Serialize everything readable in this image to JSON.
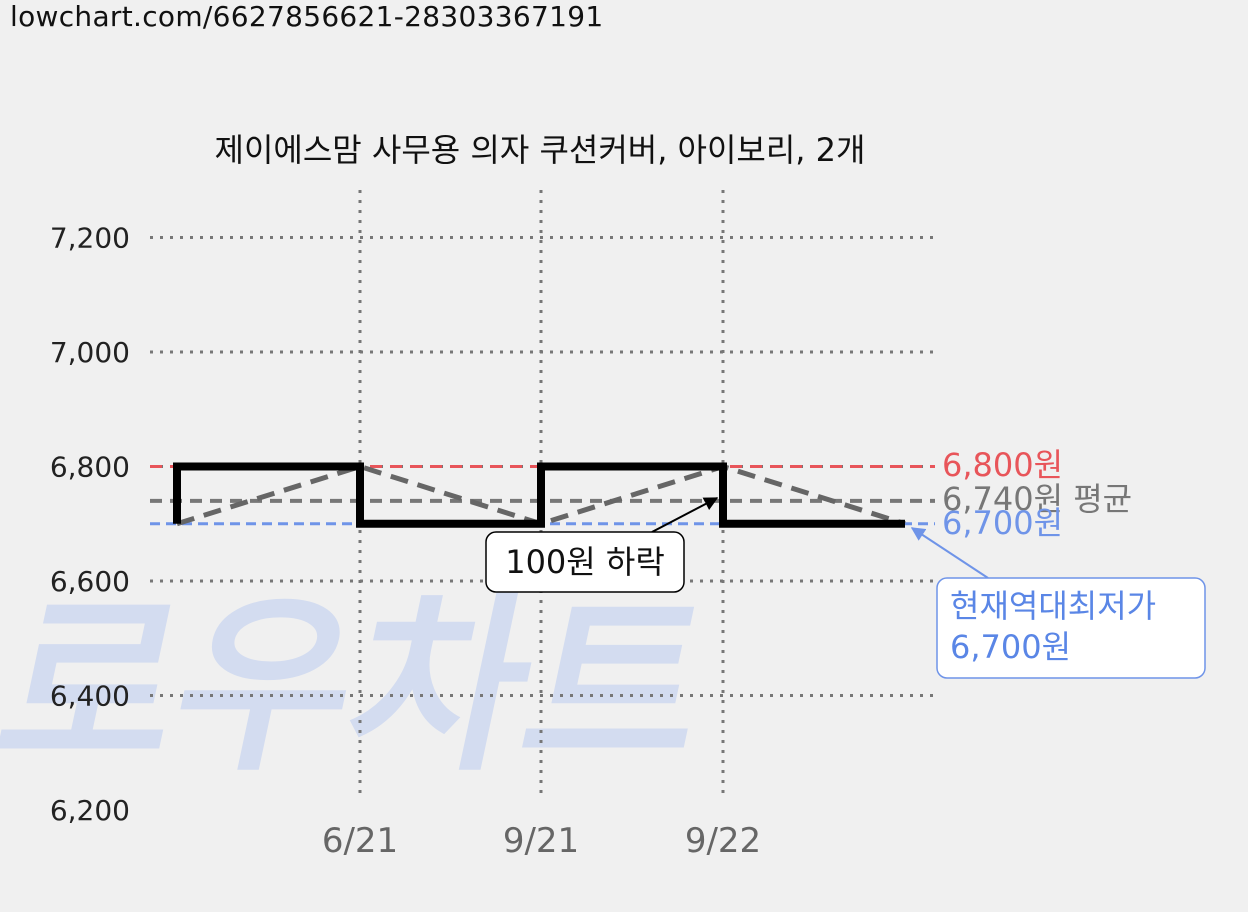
{
  "url_text": "lowchart.com/6627856621-28303367191",
  "watermark_text": "로우차트",
  "colors": {
    "background": "#f0f0f0",
    "price_line": "#000000",
    "trend_line": "#666666",
    "max_line": "#e8555a",
    "avg_line": "#777777",
    "min_line": "#6f94e8",
    "grid": "#777777",
    "watermark": "#d3dcf0",
    "min_callout_text": "#5a86e6"
  },
  "chart_data": {
    "type": "line",
    "title": "제이에스맘 사무용 의자 쿠션커버, 아이보리, 2개",
    "xlabel": "",
    "ylabel": "",
    "ylim": [
      6200,
      7300
    ],
    "yticks": [
      6200,
      6400,
      6600,
      6800,
      7000,
      7200
    ],
    "ytick_labels": [
      "6,200",
      "6,400",
      "6,600",
      "6,800",
      "7,000",
      "7,200"
    ],
    "xtick_labels": [
      "6/21",
      "9/21",
      "9/22"
    ],
    "grid": true,
    "price_series": {
      "name": "",
      "style": "step",
      "points": [
        {
          "x": "start",
          "y": 6700
        },
        {
          "x": "start",
          "y": 6800
        },
        {
          "x": "6/21",
          "y": 6800
        },
        {
          "x": "6/21",
          "y": 6700
        },
        {
          "x": "9/21",
          "y": 6700
        },
        {
          "x": "9/21",
          "y": 6800
        },
        {
          "x": "9/22",
          "y": 6800
        },
        {
          "x": "9/22",
          "y": 6700
        },
        {
          "x": "end",
          "y": 6700
        }
      ]
    },
    "trend_series": {
      "name": "",
      "style": "dashed",
      "points": [
        {
          "x": "start",
          "y": 6700
        },
        {
          "x": "6/21",
          "y": 6800
        },
        {
          "x": "9/21",
          "y": 6700
        },
        {
          "x": "9/22",
          "y": 6800
        },
        {
          "x": "end",
          "y": 6700
        }
      ]
    },
    "reference_lines": [
      {
        "key": "max",
        "value": 6800,
        "label": "6,800원"
      },
      {
        "key": "avg",
        "value": 6740,
        "label": "6,740원 평균"
      },
      {
        "key": "min",
        "value": 6700,
        "label": "6,700원"
      }
    ],
    "annotations": [
      {
        "key": "drop",
        "text": "100원 하락"
      },
      {
        "key": "min_callout",
        "lines": [
          "현재역대최저가",
          "6,700원"
        ]
      }
    ]
  }
}
